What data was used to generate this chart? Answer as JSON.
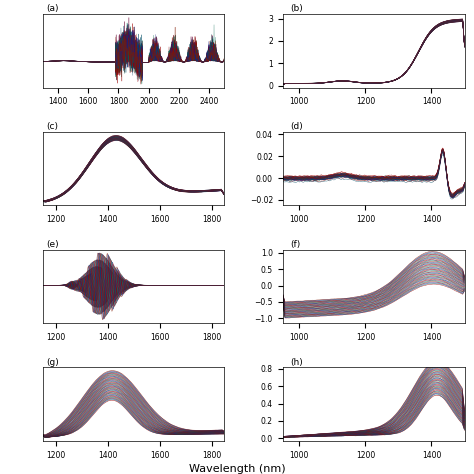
{
  "figsize": [
    4.74,
    4.74
  ],
  "dpi": 100,
  "background": "#ffffff",
  "xlabel": "Wavelength (nm)",
  "tick_fontsize": 5.5,
  "label_fontsize": 6.5,
  "n_lines": 40,
  "panels": {
    "a": {
      "label": "(a)",
      "xrange": [
        1300,
        2500
      ],
      "xticks": [
        1400,
        1600,
        1800,
        2000,
        2200,
        2400
      ],
      "yticks": []
    },
    "b": {
      "label": "(b)",
      "xrange": [
        950,
        1500
      ],
      "xticks": [
        1000,
        1200,
        1400
      ],
      "yticks": [
        0,
        1,
        2,
        3
      ]
    },
    "c": {
      "label": "(c)",
      "xrange": [
        1150,
        1850
      ],
      "xticks": [
        1200,
        1400,
        1600,
        1800
      ],
      "yticks": []
    },
    "d": {
      "label": "(d)",
      "xrange": [
        950,
        1500
      ],
      "xticks": [
        1000,
        1200,
        1400
      ],
      "yticks": [
        -0.02,
        0.0,
        0.02,
        0.04
      ]
    },
    "e": {
      "label": "(e)",
      "xrange": [
        1150,
        1850
      ],
      "xticks": [
        1200,
        1400,
        1600,
        1800
      ],
      "yticks": []
    },
    "f": {
      "label": "(f)",
      "xrange": [
        950,
        1500
      ],
      "xticks": [
        1000,
        1200,
        1400
      ],
      "yticks": [
        -1.0,
        -0.5,
        0.0,
        0.5,
        1.0
      ]
    },
    "g": {
      "label": "(g)",
      "xrange": [
        1150,
        1850
      ],
      "xticks": [
        1200,
        1400,
        1600,
        1800
      ],
      "yticks": []
    },
    "h": {
      "label": "(h)",
      "xrange": [
        950,
        1500
      ],
      "xticks": [
        1000,
        1200,
        1400
      ],
      "yticks": [
        0.0,
        0.2,
        0.4,
        0.6,
        0.8
      ]
    }
  }
}
